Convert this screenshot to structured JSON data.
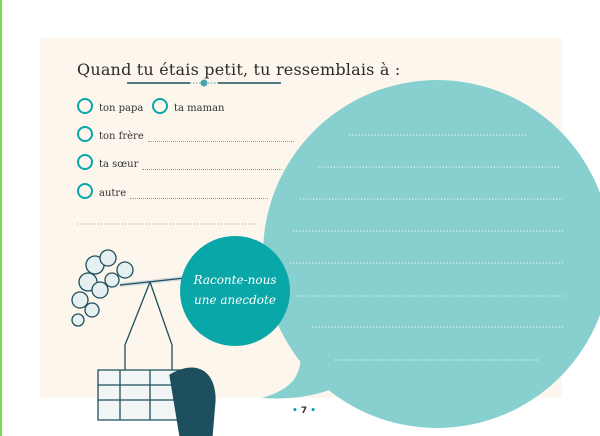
{
  "title": "Quand tu étais petit, tu ressemblais à :",
  "options": [
    {
      "label": "ton papa",
      "fill_line": false
    },
    {
      "label": "ta maman",
      "fill_line": false
    },
    {
      "label": "ton frère",
      "fill_line": true
    },
    {
      "label": "ta sœur",
      "fill_line": true
    },
    {
      "label": "autre",
      "fill_line": true
    }
  ],
  "anecdote": {
    "line1": "Raconte-nous",
    "line2": "une anecdote"
  },
  "page_number": "7",
  "colors": {
    "accent": "#0aa7a9",
    "bubble": "#87d0cf",
    "cream": "#fdf6ec",
    "dark_teal": "#1d4f5e"
  },
  "icons": [
    "ornament-divider-icon",
    "basket-illustration",
    "speech-bubble"
  ]
}
